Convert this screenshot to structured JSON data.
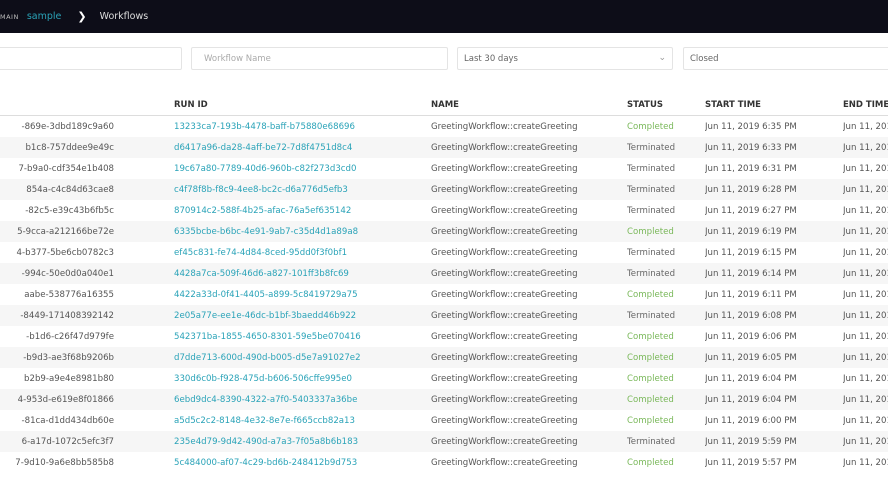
{
  "breadcrumb": {
    "domain_label": "MAIN",
    "domain": "sample",
    "separator_icon": "chevron-right-icon",
    "current": "Workflows"
  },
  "filters": {
    "workflow_id_placeholder": "",
    "workflow_name_placeholder": "Workflow Name",
    "range": "Last 30 days",
    "status": "Closed"
  },
  "colors": {
    "header_bg": "#0d0d18",
    "link": "#2aa3b8",
    "completed": "#7ab85a"
  },
  "table": {
    "columns": [
      "",
      "RUN ID",
      "NAME",
      "STATUS",
      "START TIME",
      "END TIME"
    ],
    "rows": [
      {
        "workflow_id": "-869e-3dbd189c9a60",
        "run_id": "13233ca7-193b-4478-baff-b75880e68696",
        "name": "GreetingWorkflow::createGreeting",
        "status": "Completed",
        "start": "Jun 11, 2019 6:35 PM",
        "end": "Jun 11, 201"
      },
      {
        "workflow_id": "b1c8-757ddee9e49c",
        "run_id": "d6417a96-da28-4aff-be72-7d8f4751d8c4",
        "name": "GreetingWorkflow::createGreeting",
        "status": "Terminated",
        "start": "Jun 11, 2019 6:33 PM",
        "end": "Jun 11, 201"
      },
      {
        "workflow_id": "7-b9a0-cdf354e1b408",
        "run_id": "19c67a80-7789-40d6-960b-c82f273d3cd0",
        "name": "GreetingWorkflow::createGreeting",
        "status": "Terminated",
        "start": "Jun 11, 2019 6:31 PM",
        "end": "Jun 11, 201"
      },
      {
        "workflow_id": "854a-c4c84d63cae8",
        "run_id": "c4f78f8b-f8c9-4ee8-bc2c-d6a776d5efb3",
        "name": "GreetingWorkflow::createGreeting",
        "status": "Terminated",
        "start": "Jun 11, 2019 6:28 PM",
        "end": "Jun 11, 201"
      },
      {
        "workflow_id": "-82c5-e39c43b6fb5c",
        "run_id": "870914c2-588f-4b25-afac-76a5ef635142",
        "name": "GreetingWorkflow::createGreeting",
        "status": "Terminated",
        "start": "Jun 11, 2019 6:27 PM",
        "end": "Jun 11, 201"
      },
      {
        "workflow_id": "5-9cca-a212166be72e",
        "run_id": "6335bcbe-b6bc-4e91-9ab7-c35d4d1a89a8",
        "name": "GreetingWorkflow::createGreeting",
        "status": "Completed",
        "start": "Jun 11, 2019 6:19 PM",
        "end": "Jun 11, 201"
      },
      {
        "workflow_id": "4-b377-5be6cb0782c3",
        "run_id": "ef45c831-fe74-4d84-8ced-95dd0f3f0bf1",
        "name": "GreetingWorkflow::createGreeting",
        "status": "Terminated",
        "start": "Jun 11, 2019 6:15 PM",
        "end": "Jun 11, 201"
      },
      {
        "workflow_id": "-994c-50e0d0a040e1",
        "run_id": "4428a7ca-509f-46d6-a827-101ff3b8fc69",
        "name": "GreetingWorkflow::createGreeting",
        "status": "Terminated",
        "start": "Jun 11, 2019 6:14 PM",
        "end": "Jun 11, 201"
      },
      {
        "workflow_id": "aabe-538776a16355",
        "run_id": "4422a33d-0f41-4405-a899-5c8419729a75",
        "name": "GreetingWorkflow::createGreeting",
        "status": "Completed",
        "start": "Jun 11, 2019 6:11 PM",
        "end": "Jun 11, 201"
      },
      {
        "workflow_id": "-8449-171408392142",
        "run_id": "2e05a77e-ee1e-46dc-b1bf-3baedd46b922",
        "name": "GreetingWorkflow::createGreeting",
        "status": "Terminated",
        "start": "Jun 11, 2019 6:08 PM",
        "end": "Jun 11, 201"
      },
      {
        "workflow_id": "-b1d6-c26f47d979fe",
        "run_id": "542371ba-1855-4650-8301-59e5be070416",
        "name": "GreetingWorkflow::createGreeting",
        "status": "Completed",
        "start": "Jun 11, 2019 6:06 PM",
        "end": "Jun 11, 201"
      },
      {
        "workflow_id": "-b9d3-ae3f68b9206b",
        "run_id": "d7dde713-600d-490d-b005-d5e7a91027e2",
        "name": "GreetingWorkflow::createGreeting",
        "status": "Completed",
        "start": "Jun 11, 2019 6:05 PM",
        "end": "Jun 11, 201"
      },
      {
        "workflow_id": "b2b9-a9e4e8981b80",
        "run_id": "330d6c0b-f928-475d-b606-506cffe995e0",
        "name": "GreetingWorkflow::createGreeting",
        "status": "Completed",
        "start": "Jun 11, 2019 6:04 PM",
        "end": "Jun 11, 201"
      },
      {
        "workflow_id": "4-953d-e619e8f01866",
        "run_id": "6ebd9dc4-8390-4322-a7f0-5403337a36be",
        "name": "GreetingWorkflow::createGreeting",
        "status": "Completed",
        "start": "Jun 11, 2019 6:04 PM",
        "end": "Jun 11, 201"
      },
      {
        "workflow_id": "-81ca-d1dd434db60e",
        "run_id": "a5d5c2c2-8148-4e32-8e7e-f665ccb82a13",
        "name": "GreetingWorkflow::createGreeting",
        "status": "Completed",
        "start": "Jun 11, 2019 6:00 PM",
        "end": "Jun 11, 201"
      },
      {
        "workflow_id": "6-a17d-1072c5efc3f7",
        "run_id": "235e4d79-9d42-490d-a7a3-7f05a8b6b183",
        "name": "GreetingWorkflow::createGreeting",
        "status": "Terminated",
        "start": "Jun 11, 2019 5:59 PM",
        "end": "Jun 11, 201"
      },
      {
        "workflow_id": "7-9d10-9a6e8bb585b8",
        "run_id": "5c484000-af07-4c29-bd6b-248412b9d753",
        "name": "GreetingWorkflow::createGreeting",
        "status": "Completed",
        "start": "Jun 11, 2019 5:57 PM",
        "end": "Jun 11, 201"
      }
    ]
  }
}
